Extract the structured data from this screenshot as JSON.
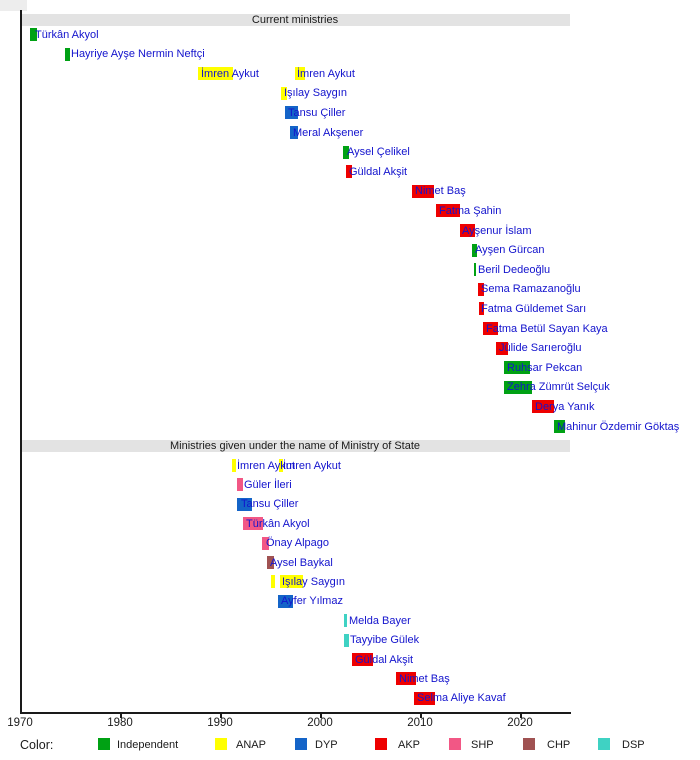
{
  "page": {
    "background": "#ffffff"
  },
  "colors": {
    "Independent": "#00a114",
    "ANAP": "#ffff00",
    "DYP": "#1464c8",
    "AKP": "#ee0000",
    "SHP": "#f25785",
    "CHP": "#a05252",
    "DSP": "#3fd2c3",
    "name_text": "#1313cd",
    "header_bg": "#e3e3e3",
    "axis": "#1a1a1a"
  },
  "chart_data": {
    "type": "timeline",
    "title": "Current ministries / Ministries given under the name of Ministry of State",
    "x_axis": {
      "range": [
        1970,
        2025
      ],
      "ticks": [
        1970,
        1980,
        1990,
        2000,
        2010,
        2020
      ],
      "grid": false
    },
    "sections": [
      {
        "title": "Current ministries",
        "rows": [
          {
            "name": "Türkân Akyol",
            "party": "Independent",
            "bars": [
              [
                1971.0,
                1971.7
              ]
            ],
            "label_at": [
              1971.5
            ]
          },
          {
            "name": "Hayriye Ayşe Nermin Neftçi",
            "party": "Independent",
            "bars": [
              [
                1974.5,
                1975.0
              ]
            ],
            "label_at": [
              1975.1
            ]
          },
          {
            "name": "İmren Aykut",
            "party": "ANAP",
            "bars": [
              [
                1987.8,
                1991.3
              ],
              [
                1997.5,
                1998.5
              ]
            ],
            "label_at": [
              1988.1,
              1997.7
            ]
          },
          {
            "name": "Işılay Saygın",
            "party": "ANAP",
            "bars": [
              [
                1996.1,
                1996.7
              ]
            ],
            "label_at": [
              1996.4
            ]
          },
          {
            "name": "Tansu Çiller",
            "party": "DYP",
            "bars": [
              [
                1996.5,
                1997.8
              ]
            ],
            "label_at": [
              1996.8
            ]
          },
          {
            "name": "Meral Akşener",
            "party": "DYP",
            "bars": [
              [
                1997.0,
                1997.8
              ]
            ],
            "label_at": [
              1997.3
            ]
          },
          {
            "name": "Aysel Çelikel",
            "party": "Independent",
            "bars": [
              [
                2002.3,
                2002.9
              ]
            ],
            "label_at": [
              2002.7
            ]
          },
          {
            "name": "Güldal Akşit",
            "party": "AKP",
            "bars": [
              [
                2002.6,
                2003.2
              ]
            ],
            "label_at": [
              2002.9
            ]
          },
          {
            "name": "Nimet Baş",
            "party": "AKP",
            "bars": [
              [
                2009.2,
                2011.4
              ]
            ],
            "label_at": [
              2009.5
            ]
          },
          {
            "name": "Fatma Şahin",
            "party": "AKP",
            "bars": [
              [
                2011.6,
                2014.0
              ]
            ],
            "label_at": [
              2011.9
            ]
          },
          {
            "name": "Ayşenur İslam",
            "party": "AKP",
            "bars": [
              [
                2014.0,
                2015.5
              ]
            ],
            "label_at": [
              2014.2
            ]
          },
          {
            "name": "Ayşen Gürcan",
            "party": "Independent",
            "bars": [
              [
                2015.2,
                2015.7
              ]
            ],
            "label_at": [
              2015.5
            ]
          },
          {
            "name": "Beril Dedeoğlu",
            "party": "Independent",
            "bars": [
              [
                2015.4,
                2015.6
              ]
            ],
            "label_at": [
              2015.8
            ]
          },
          {
            "name": "Sema Ramazanoğlu",
            "party": "AKP",
            "bars": [
              [
                2015.8,
                2016.4
              ]
            ],
            "label_at": [
              2016.1
            ]
          },
          {
            "name": "Fatma Güldemet Sarı",
            "party": "AKP",
            "bars": [
              [
                2015.9,
                2016.4
              ]
            ],
            "label_at": [
              2016.1
            ]
          },
          {
            "name": "Fatma Betül Sayan Kaya",
            "party": "AKP",
            "bars": [
              [
                2016.3,
                2017.8
              ]
            ],
            "label_at": [
              2016.6
            ]
          },
          {
            "name": "Jülide Sarıeroğlu",
            "party": "AKP",
            "bars": [
              [
                2017.6,
                2018.8
              ]
            ],
            "label_at": [
              2017.9
            ]
          },
          {
            "name": "Ruhsar Pekcan",
            "party": "Independent",
            "bars": [
              [
                2018.4,
                2021.0
              ]
            ],
            "label_at": [
              2018.7
            ]
          },
          {
            "name": "Zehra Zümrüt Selçuk",
            "party": "Independent",
            "bars": [
              [
                2018.4,
                2021.2
              ]
            ],
            "label_at": [
              2018.7
            ]
          },
          {
            "name": "Derya Yanık",
            "party": "AKP",
            "bars": [
              [
                2021.2,
                2023.4
              ]
            ],
            "label_at": [
              2021.5
            ]
          },
          {
            "name": "Mahinur Özdemir Göktaş",
            "party": "Independent",
            "bars": [
              [
                2023.4,
                2024.5
              ]
            ],
            "label_at": [
              2023.7
            ]
          }
        ]
      },
      {
        "title": "Ministries given under the name of Ministry of State",
        "rows": [
          {
            "name": "İmren Aykut",
            "party": "ANAP",
            "bars": [
              [
                1991.2,
                1991.6
              ],
              [
                1995.9,
                1996.3
              ]
            ],
            "label_at": [
              1991.7,
              1996.3
            ]
          },
          {
            "name": "Güler İleri",
            "party": "SHP",
            "bars": [
              [
                1991.7,
                1992.3
              ]
            ],
            "label_at": [
              1992.4
            ]
          },
          {
            "name": "Tansu Çiller",
            "party": "DYP",
            "bars": [
              [
                1991.7,
                1993.2
              ]
            ],
            "label_at": [
              1992.1
            ]
          },
          {
            "name": "Türkân Akyol",
            "party": "SHP",
            "bars": [
              [
                1992.3,
                1994.3
              ]
            ],
            "label_at": [
              1992.6
            ]
          },
          {
            "name": "Önay Alpago",
            "party": "SHP",
            "bars": [
              [
                1994.2,
                1994.9
              ]
            ],
            "label_at": [
              1994.6
            ]
          },
          {
            "name": "Aysel Baykal",
            "party": "CHP",
            "bars": [
              [
                1994.7,
                1995.4
              ]
            ],
            "label_at": [
              1995.0
            ]
          },
          {
            "name": "Işılay Saygın",
            "party": "ANAP",
            "bars": [
              [
                1995.1,
                1995.5
              ],
              [
                1996.0,
                1998.3
              ]
            ],
            "label_at": [
              1996.2
            ]
          },
          {
            "name": "Ayfer Yılmaz",
            "party": "DYP",
            "bars": [
              [
                1995.8,
                1997.3
              ]
            ],
            "label_at": [
              1996.1
            ]
          },
          {
            "name": "Melda Bayer",
            "party": "DSP",
            "bars": [
              [
                2002.4,
                2002.7
              ]
            ],
            "label_at": [
              2002.9
            ]
          },
          {
            "name": "Tayyibe Gülek",
            "party": "DSP",
            "bars": [
              [
                2002.4,
                2002.9
              ]
            ],
            "label_at": [
              2003.0
            ]
          },
          {
            "name": "Güldal Akşit",
            "party": "AKP",
            "bars": [
              [
                2003.2,
                2005.3
              ]
            ],
            "label_at": [
              2003.5
            ]
          },
          {
            "name": "Nimet Baş",
            "party": "AKP",
            "bars": [
              [
                2007.6,
                2009.6
              ]
            ],
            "label_at": [
              2007.9
            ]
          },
          {
            "name": "Selma Aliye Kavaf",
            "party": "AKP",
            "bars": [
              [
                2009.4,
                2011.5
              ]
            ],
            "label_at": [
              2009.7
            ]
          }
        ]
      }
    ],
    "legend": {
      "label": "Color:",
      "position": "bottom",
      "entries": [
        {
          "label": "Independent",
          "party": "Independent"
        },
        {
          "label": "ANAP",
          "party": "ANAP"
        },
        {
          "label": "DYP",
          "party": "DYP"
        },
        {
          "label": "AKP",
          "party": "AKP"
        },
        {
          "label": "SHP",
          "party": "SHP"
        },
        {
          "label": "CHP",
          "party": "CHP"
        },
        {
          "label": "DSP",
          "party": "DSP"
        }
      ]
    }
  }
}
